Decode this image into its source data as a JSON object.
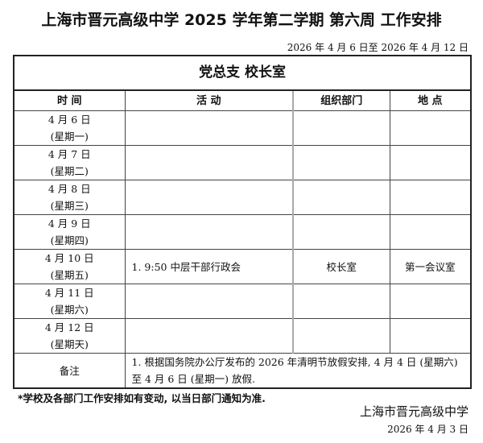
{
  "title": "上海市晋元高级中学  2025 学年第二学期  第六周  工作安排",
  "date_range": "2026 年 4 月 6 日至 2026 年 4 月 12 日",
  "banner": "党总支  校长室",
  "headers": [
    "时 间",
    "活 动",
    "组织部门",
    "地 点"
  ],
  "days": [
    {
      "date": "4 月 6 日",
      "weekday": "(星期一)",
      "activity": "",
      "dept": "",
      "place": ""
    },
    {
      "date": "4 月 7 日",
      "weekday": "(星期二)",
      "activity": "",
      "dept": "",
      "place": ""
    },
    {
      "date": "4 月 8 日",
      "weekday": "(星期三)",
      "activity": "",
      "dept": "",
      "place": ""
    },
    {
      "date": "4 月 9 日",
      "weekday": "(星期四)",
      "activity": "",
      "dept": "",
      "place": ""
    },
    {
      "date": "4 月 10 日",
      "weekday": "(星期五)",
      "activity": "1.    9:50   中层干部行政会",
      "dept": "校长室",
      "place": "第一会议室"
    },
    {
      "date": "4 月 11 日",
      "weekday": "(星期六)",
      "activity": "",
      "dept": "",
      "place": ""
    },
    {
      "date": "4 月 12 日",
      "weekday": "(星期天)",
      "activity": "",
      "dept": "",
      "place": ""
    }
  ],
  "note_label": "备注",
  "note_text": "1.    根据国务院办公厅发布的 2026 年清明节放假安排, 4 月 4 日 (星期六) 至 4 月 6 日 (星期一) 放假.",
  "footnote": "*学校及各部门工作安排如有变动, 以当日部门通知为准.",
  "signature_org": "上海市晋元高级中学",
  "signature_date": "2026 年 4 月 3 日"
}
